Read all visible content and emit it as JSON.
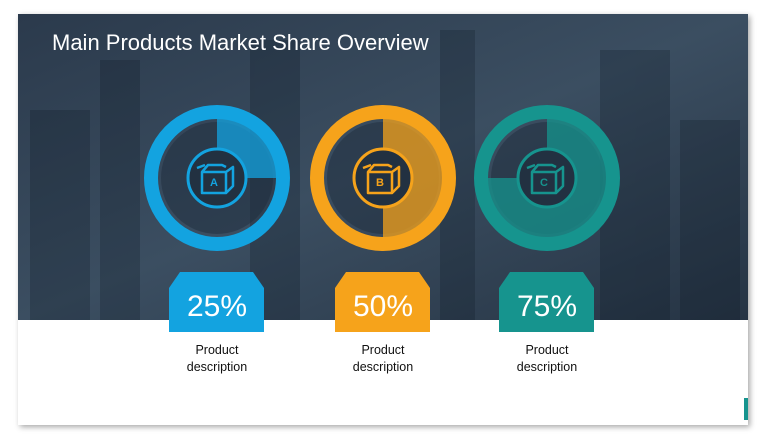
{
  "title": "Main Products Market Share Overview",
  "chart_data": [
    {
      "type": "donut",
      "label": "A",
      "values": [
        25
      ],
      "value_labels": [
        "25%"
      ],
      "description": "Product description",
      "color": "#13a3e0"
    },
    {
      "type": "donut",
      "label": "B",
      "values": [
        50
      ],
      "value_labels": [
        "50%"
      ],
      "description": "Product description",
      "color": "#f6a31b"
    },
    {
      "type": "donut",
      "label": "C",
      "values": [
        75
      ],
      "value_labels": [
        "75%"
      ],
      "description": "Product description",
      "color": "#16948e"
    }
  ]
}
